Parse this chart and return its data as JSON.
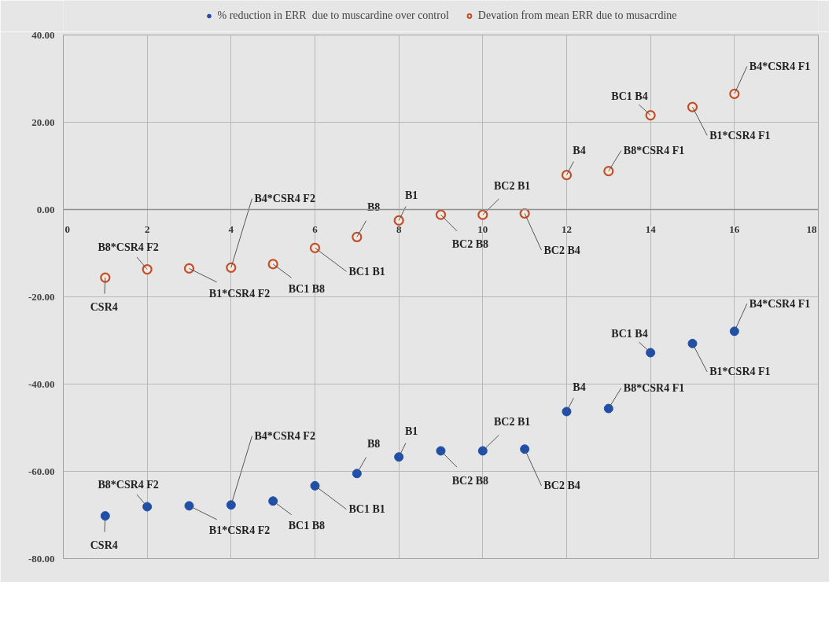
{
  "chart_data": {
    "type": "scatter",
    "xlim": [
      0,
      18
    ],
    "ylim": [
      -80,
      40
    ],
    "xticks": [
      0,
      2,
      4,
      6,
      8,
      10,
      12,
      14,
      16,
      18
    ],
    "yticks": [
      {
        "value": -80,
        "label": "-80.00"
      },
      {
        "value": -60,
        "label": "-60.00"
      },
      {
        "value": -40,
        "label": "-40.00"
      },
      {
        "value": -20,
        "label": "-20.00"
      },
      {
        "value": 0,
        "label": "0.00"
      },
      {
        "value": 20,
        "label": "20.00"
      },
      {
        "value": 40,
        "label": "40.00"
      }
    ],
    "grid": true,
    "legend": "top",
    "marker": "circle",
    "series": [
      {
        "name": "% reduction in ERR  due to muscardine over control",
        "color": "#1f4fa8",
        "x": [
          1,
          2,
          3,
          4,
          5,
          6,
          7,
          8,
          9,
          10,
          11,
          12,
          13,
          14,
          15,
          16
        ],
        "values": [
          -70.2,
          -68.1,
          -67.9,
          -67.7,
          -66.8,
          -63.3,
          -60.5,
          -56.7,
          -55.3,
          -55.3,
          -54.9,
          -46.3,
          -45.6,
          -32.8,
          -30.7,
          -27.9
        ]
      },
      {
        "name": "Devation from mean ERR due to musacrdine",
        "color": "#c0502a",
        "x": [
          1,
          2,
          3,
          4,
          5,
          6,
          7,
          8,
          9,
          10,
          11,
          12,
          13,
          14,
          15,
          16
        ],
        "values": [
          -15.6,
          -13.7,
          -13.5,
          -13.3,
          -12.5,
          -8.8,
          -6.3,
          -2.5,
          -1.2,
          -1.2,
          -0.9,
          7.9,
          8.8,
          21.6,
          23.5,
          26.5
        ]
      }
    ],
    "annotations": [
      {
        "text": "CSR4",
        "x": 1,
        "y": -70.2
      },
      {
        "text": "B8*CSR4 F2",
        "x": 2,
        "y": -68.1
      },
      {
        "text": "B1*CSR4 F2",
        "x": 3,
        "y": -67.9
      },
      {
        "text": "B4*CSR4 F2",
        "x": 4,
        "y": -67.7
      },
      {
        "text": "BC1 B8",
        "x": 5,
        "y": -66.8
      },
      {
        "text": "BC1 B1",
        "x": 6,
        "y": -63.3
      },
      {
        "text": "B8",
        "x": 7,
        "y": -60.5
      },
      {
        "text": "B1",
        "x": 8,
        "y": -56.7
      },
      {
        "text": "BC2 B8",
        "x": 9,
        "y": -55.3
      },
      {
        "text": "BC2 B1",
        "x": 10,
        "y": -55.3
      },
      {
        "text": "BC2 B4",
        "x": 11,
        "y": -54.9
      },
      {
        "text": "B4",
        "x": 12,
        "y": -46.3
      },
      {
        "text": "B8*CSR4 F1",
        "x": 13,
        "y": -45.6
      },
      {
        "text": "BC1 B4",
        "x": 14,
        "y": -32.8
      },
      {
        "text": "B1*CSR4 F1",
        "x": 15,
        "y": -30.7
      },
      {
        "text": "B4*CSR4 F1",
        "x": 16,
        "y": -27.9
      },
      {
        "text": "CSR4",
        "x": 1,
        "y": -15.6
      },
      {
        "text": "B8*CSR4 F2",
        "x": 2,
        "y": -13.7
      },
      {
        "text": "B1*CSR4 F2",
        "x": 3,
        "y": -13.5
      },
      {
        "text": "B4*CSR4 F2",
        "x": 4,
        "y": -13.3
      },
      {
        "text": "BC1 B8",
        "x": 5,
        "y": -12.5
      },
      {
        "text": "BC1 B1",
        "x": 6,
        "y": -8.8
      },
      {
        "text": "B8",
        "x": 7,
        "y": -6.3
      },
      {
        "text": "B1",
        "x": 8,
        "y": -2.5
      },
      {
        "text": "BC2 B8",
        "x": 9,
        "y": -1.2
      },
      {
        "text": "BC2 B1",
        "x": 10,
        "y": -1.2
      },
      {
        "text": "BC2 B4",
        "x": 11,
        "y": -0.9
      },
      {
        "text": "B4",
        "x": 12,
        "y": 7.9
      },
      {
        "text": "B8*CSR4 F1",
        "x": 13,
        "y": 8.8
      },
      {
        "text": "BC1 B4",
        "x": 14,
        "y": 21.6
      },
      {
        "text": "B1*CSR4 F1",
        "x": 15,
        "y": 23.5
      },
      {
        "text": "B4*CSR4 F1",
        "x": 16,
        "y": 26.5
      }
    ]
  }
}
